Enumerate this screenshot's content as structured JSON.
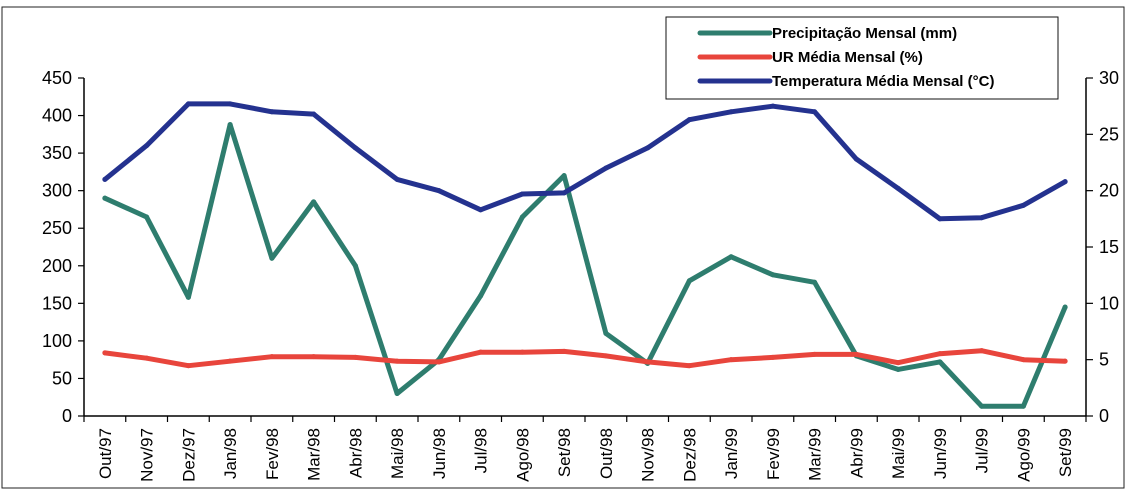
{
  "chart_data": {
    "type": "line",
    "title": "",
    "xlabel": "",
    "categories": [
      "Out/97",
      "Nov/97",
      "Dez/97",
      "Jan/98",
      "Fev/98",
      "Mar/98",
      "Abr/98",
      "Mai/98",
      "Jun/98",
      "Jul/98",
      "Ago/98",
      "Set/98",
      "Out/98",
      "Nov/98",
      "Dez/98",
      "Jan/99",
      "Fev/99",
      "Mar/99",
      "Abr/99",
      "Mai/99",
      "Jun/99",
      "Jul/99",
      "Ago/99",
      "Set/99"
    ],
    "ylim_left": [
      0,
      450
    ],
    "yticks_left": [
      "0",
      "50",
      "100",
      "150",
      "200",
      "250",
      "300",
      "350",
      "400",
      "450"
    ],
    "ylim_right": [
      0,
      30
    ],
    "yticks_right": [
      "0",
      "5",
      "10",
      "15",
      "20",
      "25",
      "30"
    ],
    "grid": false,
    "legend_position": "top-right",
    "series": [
      {
        "name": "Precipitação Mensal (mm)",
        "axis": "left",
        "color": "#2e7d6e",
        "values": [
          290,
          265,
          158,
          388,
          210,
          285,
          200,
          30,
          75,
          160,
          265,
          320,
          110,
          70,
          180,
          212,
          188,
          178,
          80,
          62,
          72,
          13,
          13,
          145
        ]
      },
      {
        "name": "UR Média Mensal (%)",
        "axis": "left",
        "color": "#e8453c",
        "values": [
          84,
          77,
          67,
          73,
          79,
          79,
          78,
          73,
          72,
          85,
          85,
          86,
          80,
          72,
          67,
          75,
          78,
          82,
          82,
          71,
          83,
          87,
          75,
          73
        ]
      },
      {
        "name": "Temperatura Média Mensal (°C)",
        "axis": "right",
        "color": "#24328f",
        "values": [
          21,
          24,
          27.7,
          27.7,
          27,
          26.8,
          23.8,
          21,
          20,
          18.3,
          19.7,
          19.8,
          22,
          23.8,
          26.3,
          27,
          27.5,
          27,
          22.8,
          20.2,
          17.5,
          17.6,
          18.7,
          20.8
        ]
      }
    ]
  }
}
